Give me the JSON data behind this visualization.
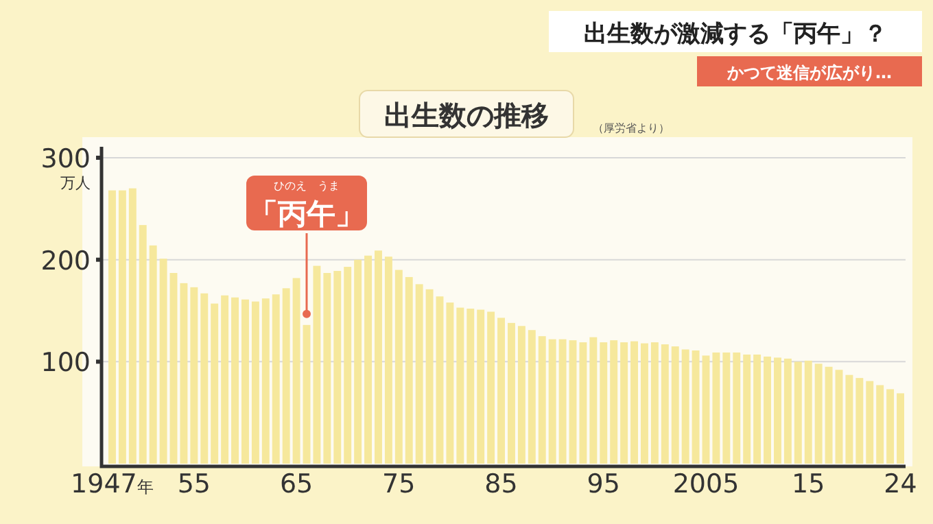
{
  "chart_data": {
    "type": "bar",
    "title": "出生数の推移",
    "ylabel": "万人",
    "color": "#f6e89c",
    "categories": [
      "1947年",
      null,
      null,
      null,
      null,
      null,
      null,
      null,
      "55",
      null,
      null,
      null,
      null,
      null,
      null,
      null,
      null,
      null,
      "65",
      null,
      null,
      null,
      null,
      null,
      null,
      null,
      null,
      null,
      "75",
      null,
      null,
      null,
      null,
      null,
      null,
      null,
      null,
      null,
      "85",
      null,
      null,
      null,
      null,
      null,
      null,
      null,
      null,
      null,
      "95",
      null,
      null,
      null,
      null,
      null,
      null,
      null,
      null,
      null,
      "2005",
      null,
      null,
      null,
      null,
      null,
      null,
      null,
      null,
      null,
      "15",
      null,
      null,
      null,
      null,
      null,
      null,
      null,
      null,
      "24"
    ],
    "values": [
      268,
      268,
      270,
      234,
      214,
      201,
      187,
      177,
      173,
      167,
      157,
      165,
      163,
      161,
      159,
      162,
      166,
      172,
      182,
      136,
      194,
      187,
      189,
      193,
      200,
      204,
      209,
      203,
      190,
      183,
      176,
      171,
      164,
      158,
      153,
      152,
      151,
      149,
      143,
      138,
      135,
      131,
      125,
      122,
      122,
      121,
      119,
      124,
      119,
      121,
      119,
      120,
      118,
      119,
      117,
      115,
      112,
      111,
      106,
      109,
      109,
      109,
      107,
      107,
      105,
      104,
      103,
      100,
      101,
      98,
      95,
      92,
      87,
      84,
      81,
      77,
      73,
      69
    ],
    "ylim": [
      0,
      300
    ],
    "yticks": [
      100,
      200,
      300
    ],
    "grid": "y",
    "annotations": [
      {
        "text": "「丙午」",
        "y": 136
      },
      "ひのえ　うま",
      "出生数が激減する「丙午」？",
      "かつて迷信が広がり…",
      "（厚労省より）"
    ]
  }
}
